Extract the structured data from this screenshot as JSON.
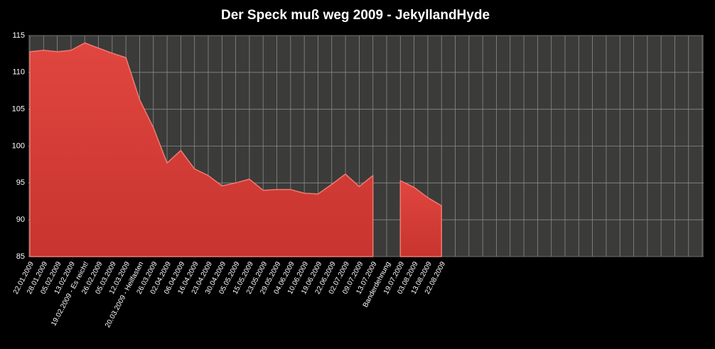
{
  "chart_data": {
    "type": "area",
    "title": "Der Speck muß weg 2009 - JekyllandHyde",
    "categories": [
      "22.01.2009",
      "28.01.2009",
      "05.02.2009",
      "13.02.2009",
      "19.02.2009 - Es reicht!",
      "26.02.2009",
      "05.03.2009",
      "12.03.2009",
      "20.03.2009 - Heilfasten",
      "26.03.2009",
      "02.04.2009",
      "06.04.2009",
      "16.04.2009",
      "23.04.2009",
      "30.04.2009",
      "05.05.2009",
      "15.05.2009",
      "23.05.2009",
      "29.05.2009",
      "04.06.2009",
      "10.06.2009",
      "19.06.2009",
      "22.06.2009",
      "02.07.2009",
      "09.07.2009",
      "13.07.2009",
      "Banderdehnung",
      "19.07.2009",
      "03.08.2009",
      "13.08.2009",
      "22.08.2009",
      null,
      null,
      null,
      null,
      null,
      null,
      null,
      null,
      null,
      null,
      null,
      null,
      null,
      null,
      null,
      null,
      null,
      null,
      null
    ],
    "values": [
      112.8,
      113.0,
      112.8,
      113.0,
      114.0,
      113.3,
      112.6,
      112.0,
      106.3,
      102.5,
      97.7,
      99.4,
      96.9,
      96.0,
      94.6,
      95.0,
      95.5,
      94.0,
      94.1,
      94.1,
      93.6,
      93.5,
      94.8,
      96.2,
      94.5,
      96.0,
      null,
      95.3,
      94.4,
      93.0,
      91.9,
      null,
      null,
      null,
      null,
      null,
      null,
      null,
      null,
      null,
      null,
      null,
      null,
      null,
      null,
      null,
      null,
      null,
      null,
      null
    ],
    "color": "#d8403a",
    "ylim": [
      85,
      115
    ],
    "yticks": [
      85,
      90,
      95,
      100,
      105,
      110,
      115
    ],
    "grid": true
  }
}
